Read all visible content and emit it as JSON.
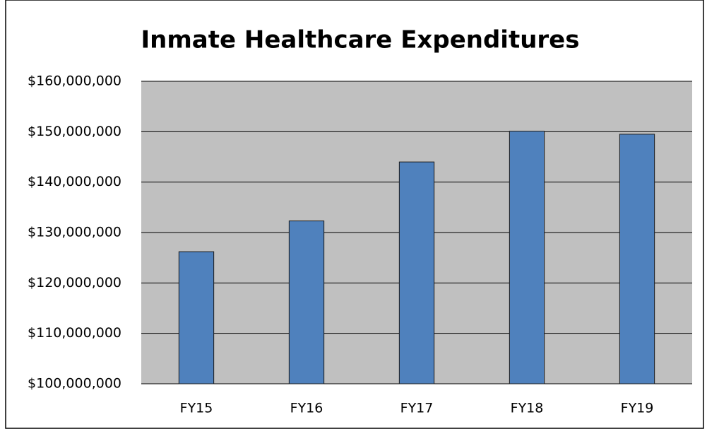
{
  "chart_data": {
    "type": "bar",
    "title": "Inmate Healthcare Expenditures",
    "categories": [
      "FY15",
      "FY16",
      "FY17",
      "FY18",
      "FY19"
    ],
    "values": [
      126200000,
      132300000,
      144000000,
      150100000,
      149500000
    ],
    "color": "#4f81bd",
    "ylim": [
      100000000,
      160000000
    ],
    "yticks": [
      {
        "value": 100000000,
        "label": "$100,000,000"
      },
      {
        "value": 110000000,
        "label": "$110,000,000"
      },
      {
        "value": 120000000,
        "label": "$120,000,000"
      },
      {
        "value": 130000000,
        "label": "$130,000,000"
      },
      {
        "value": 140000000,
        "label": "$140,000,000"
      },
      {
        "value": 150000000,
        "label": "$150,000,000"
      },
      {
        "value": 160000000,
        "label": "$160,000,000"
      }
    ],
    "grid": true
  }
}
